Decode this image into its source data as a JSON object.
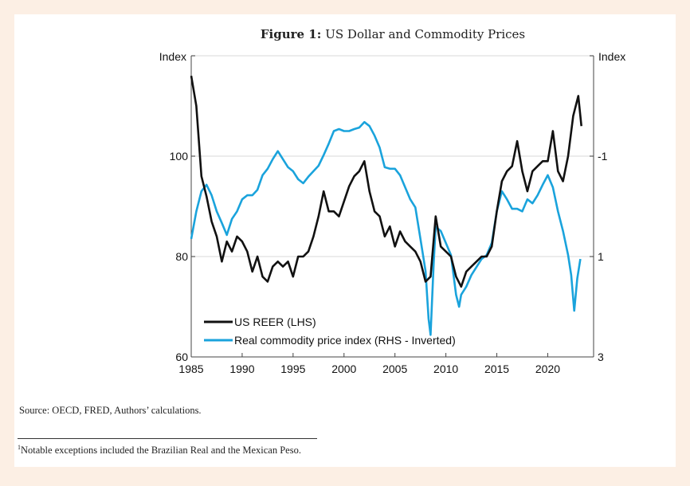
{
  "chart_data": {
    "type": "line",
    "title_prefix": "Figure 1:",
    "title": "US Dollar and Commodity Prices",
    "xlabel": "",
    "ylabel_left": "Index",
    "ylabel_right": "Index",
    "xlim": [
      1985,
      2024.5
    ],
    "ylim_left": [
      60,
      120
    ],
    "ylim_right_inverted": [
      -3,
      3
    ],
    "x_ticks": [
      "1985",
      "1990",
      "1995",
      "2000",
      "2005",
      "2010",
      "2015",
      "2020"
    ],
    "y_ticks_left": [
      "60",
      "80",
      "100"
    ],
    "y_ticks_right": [
      "-1",
      "1",
      "3"
    ],
    "grid": true,
    "legend_position": "bottom-left",
    "colors": {
      "reer": "#111111",
      "commodity": "#1aa3dc"
    },
    "series": [
      {
        "name": "US REER (LHS)",
        "axis": "left",
        "x": [
          1985,
          1985.5,
          1986,
          1986.5,
          1987,
          1987.5,
          1988,
          1988.5,
          1989,
          1989.5,
          1990,
          1990.5,
          1991,
          1991.5,
          1992,
          1992.5,
          1993,
          1993.5,
          1994,
          1994.5,
          1995,
          1995.5,
          1996,
          1996.5,
          1997,
          1997.5,
          1998,
          1998.5,
          1999,
          1999.5,
          2000,
          2000.5,
          2001,
          2001.5,
          2002,
          2002.5,
          2003,
          2003.5,
          2004,
          2004.5,
          2005,
          2005.5,
          2006,
          2006.5,
          2007,
          2007.5,
          2008,
          2008.5,
          2009,
          2009.5,
          2010,
          2010.5,
          2011,
          2011.5,
          2012,
          2012.5,
          2013,
          2013.5,
          2014,
          2014.5,
          2015,
          2015.5,
          2016,
          2016.5,
          2017,
          2017.5,
          2018,
          2018.5,
          2019,
          2019.5,
          2020,
          2020.5,
          2021,
          2021.5,
          2022,
          2022.5,
          2023,
          2023.3
        ],
        "values": [
          116,
          110,
          96,
          92,
          87,
          84,
          79,
          83,
          81,
          84,
          83,
          81,
          77,
          80,
          76,
          75,
          78,
          79,
          78,
          79,
          76,
          80,
          80,
          81,
          84,
          88,
          93,
          89,
          89,
          88,
          91,
          94,
          96,
          97,
          99,
          93,
          89,
          88,
          84,
          86,
          82,
          85,
          83,
          82,
          81,
          79,
          75,
          76,
          88,
          82,
          81,
          80,
          76,
          74,
          77,
          78,
          79,
          80,
          80,
          82,
          89,
          95,
          97,
          98,
          103,
          97,
          93,
          97,
          98,
          99,
          99,
          105,
          97,
          95,
          100,
          108,
          112,
          106
        ]
      },
      {
        "name": "Real commodity price index (RHS - Inverted)",
        "axis": "right",
        "x": [
          1985,
          1985.5,
          1986,
          1986.5,
          1987,
          1987.5,
          1988,
          1988.5,
          1989,
          1989.5,
          1990,
          1990.5,
          1991,
          1991.5,
          1992,
          1992.5,
          1993,
          1993.5,
          1994,
          1994.5,
          1995,
          1995.5,
          1996,
          1996.5,
          1997,
          1997.5,
          1998,
          1998.5,
          1999,
          1999.5,
          2000,
          2000.5,
          2001,
          2001.5,
          2002,
          2002.5,
          2003,
          2003.5,
          2004,
          2004.5,
          2005,
          2005.5,
          2006,
          2006.5,
          2007,
          2007.5,
          2008,
          2008.3,
          2008.5,
          2008.8,
          2009,
          2009.5,
          2010,
          2010.5,
          2011,
          2011.3,
          2011.5,
          2012,
          2012.5,
          2013,
          2013.5,
          2014,
          2014.5,
          2015,
          2015.5,
          2016,
          2016.5,
          2017,
          2017.5,
          2018,
          2018.5,
          2019,
          2019.5,
          2020,
          2020.5,
          2021,
          2021.5,
          2022,
          2022.3,
          2022.6,
          2022.9,
          2023.2
        ],
        "values": [
          0.65,
          0.1,
          -0.3,
          -0.43,
          -0.22,
          0.1,
          0.33,
          0.57,
          0.25,
          0.1,
          -0.14,
          -0.22,
          -0.22,
          -0.33,
          -0.62,
          -0.75,
          -0.94,
          -1.1,
          -0.94,
          -0.78,
          -0.7,
          -0.54,
          -0.46,
          -0.59,
          -0.7,
          -0.81,
          -1.02,
          -1.25,
          -1.5,
          -1.54,
          -1.5,
          -1.5,
          -1.54,
          -1.57,
          -1.68,
          -1.6,
          -1.41,
          -1.17,
          -0.78,
          -0.75,
          -0.75,
          -0.62,
          -0.38,
          -0.14,
          0.02,
          0.65,
          1.29,
          2.24,
          2.56,
          1.13,
          0.41,
          0.49,
          0.73,
          0.97,
          1.76,
          2.0,
          1.76,
          1.6,
          1.37,
          1.21,
          1.05,
          0.97,
          0.73,
          0.1,
          -0.3,
          -0.14,
          0.05,
          0.05,
          0.1,
          -0.14,
          -0.06,
          -0.22,
          -0.43,
          -0.62,
          -0.38,
          0.1,
          0.49,
          0.97,
          1.37,
          2.08,
          1.44,
          1.05
        ]
      }
    ]
  },
  "source": "Source: OECD, FRED, Authors’ calculations.",
  "footnote": {
    "mark": "1",
    "text": "Notable exceptions included the Brazilian Real and the Mexican Peso."
  }
}
